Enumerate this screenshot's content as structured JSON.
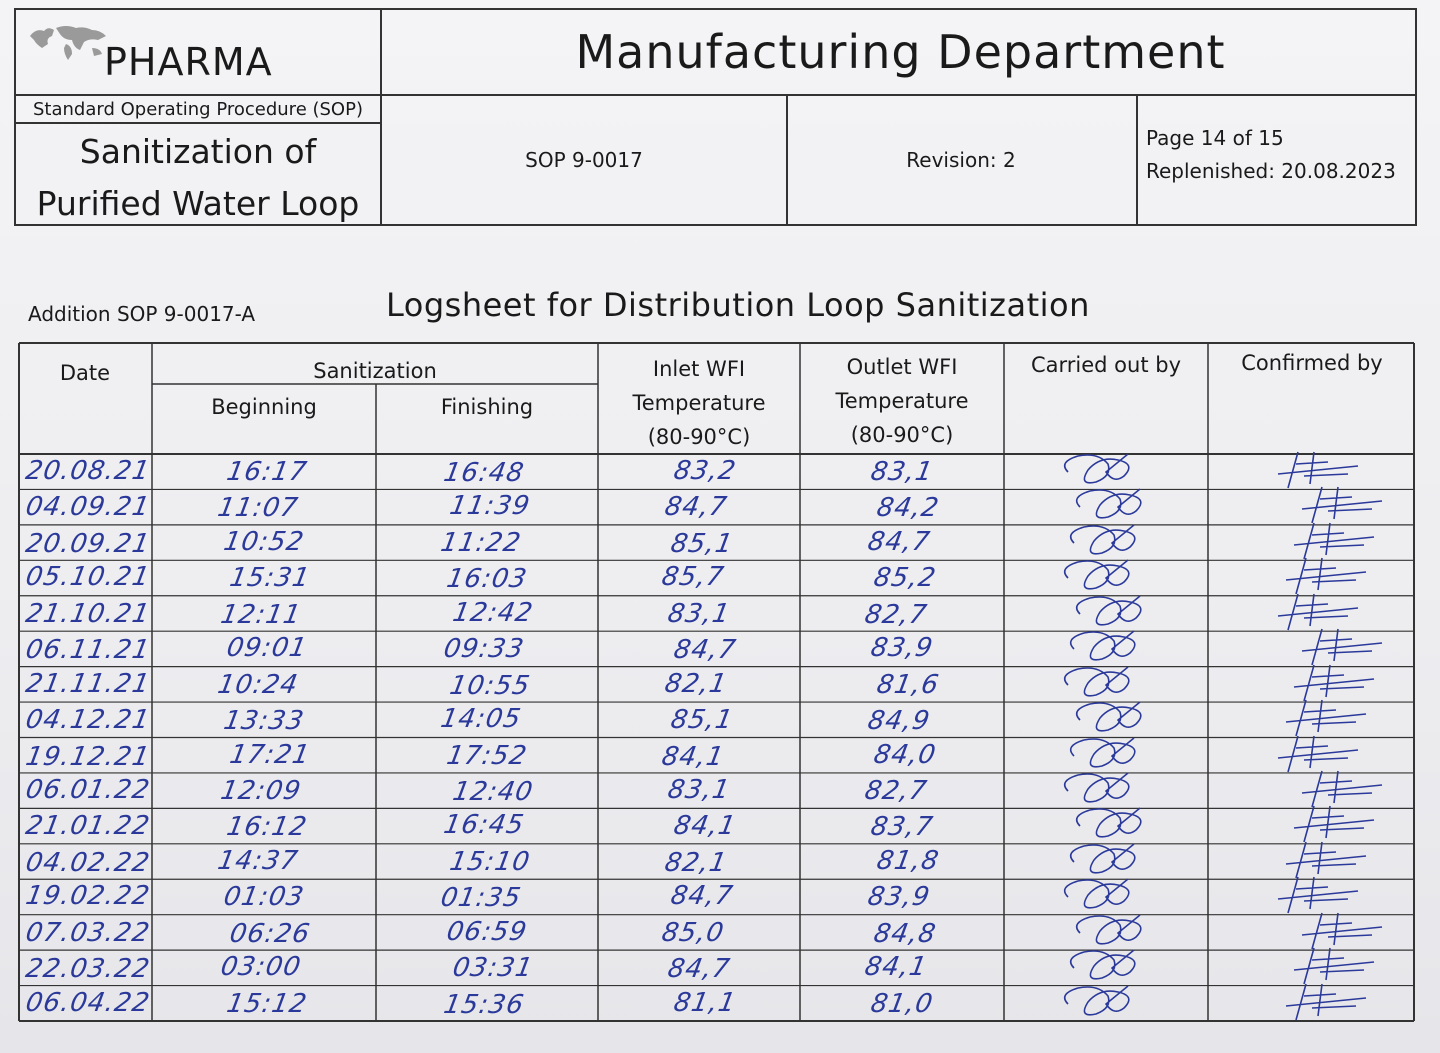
{
  "header": {
    "company": "PHARMA",
    "department": "Manufacturing Department",
    "sop_label": "Standard Operating Procedure (SOP)",
    "sop_title_line1": "Sanitization of",
    "sop_title_line2": "Purified Water Loop",
    "sop_number": "SOP 9-0017",
    "revision": "Revision: 2",
    "page": "Page 14 of 15",
    "replenished": "Replenished: 20.08.2023"
  },
  "addition": "Addition SOP 9-0017-A",
  "log_title": "Logsheet for Distribution Loop Sanitization",
  "columns": {
    "date": "Date",
    "sanitization": "Sanitization",
    "beginning": "Beginning",
    "finishing": "Finishing",
    "inlet_l1": "Inlet WFI",
    "inlet_l2": "Temperature",
    "inlet_l3": "(80-90°C)",
    "outlet_l1": "Outlet WFI",
    "outlet_l2": "Temperature",
    "outlet_l3": "(80-90°C)",
    "carried": "Carried out by",
    "confirmed": "Confirmed by"
  },
  "rows": [
    {
      "date": "20.08.21",
      "begin": "16:17",
      "finish": "16:48",
      "inlet": "83,2",
      "outlet": "83,1"
    },
    {
      "date": "04.09.21",
      "begin": "11:07",
      "finish": "11:39",
      "inlet": "84,7",
      "outlet": "84,2"
    },
    {
      "date": "20.09.21",
      "begin": "10:52",
      "finish": "11:22",
      "inlet": "85,1",
      "outlet": "84,7"
    },
    {
      "date": "05.10.21",
      "begin": "15:31",
      "finish": "16:03",
      "inlet": "85,7",
      "outlet": "85,2"
    },
    {
      "date": "21.10.21",
      "begin": "12:11",
      "finish": "12:42",
      "inlet": "83,1",
      "outlet": "82,7"
    },
    {
      "date": "06.11.21",
      "begin": "09:01",
      "finish": "09:33",
      "inlet": "84,7",
      "outlet": "83,9"
    },
    {
      "date": "21.11.21",
      "begin": "10:24",
      "finish": "10:55",
      "inlet": "82,1",
      "outlet": "81,6"
    },
    {
      "date": "04.12.21",
      "begin": "13:33",
      "finish": "14:05",
      "inlet": "85,1",
      "outlet": "84,9"
    },
    {
      "date": "19.12.21",
      "begin": "17:21",
      "finish": "17:52",
      "inlet": "84,1",
      "outlet": "84,0"
    },
    {
      "date": "06.01.22",
      "begin": "12:09",
      "finish": "12:40",
      "inlet": "83,1",
      "outlet": "82,7"
    },
    {
      "date": "21.01.22",
      "begin": "16:12",
      "finish": "16:45",
      "inlet": "84,1",
      "outlet": "83,7"
    },
    {
      "date": "04.02.22",
      "begin": "14:37",
      "finish": "15:10",
      "inlet": "82,1",
      "outlet": "81,8"
    },
    {
      "date": "19.02.22",
      "begin": "01:03",
      "finish": "01:35",
      "inlet": "84,7",
      "outlet": "83,9"
    },
    {
      "date": "07.03.22",
      "begin": "06:26",
      "finish": "06:59",
      "inlet": "85,0",
      "outlet": "84,8"
    },
    {
      "date": "22.03.22",
      "begin": "03:00",
      "finish": "03:31",
      "inlet": "84,7",
      "outlet": "84,1"
    },
    {
      "date": "06.04.22",
      "begin": "15:12",
      "finish": "15:36",
      "inlet": "81,1",
      "outlet": "81,0"
    }
  ],
  "colors": {
    "ink": "#2b3a9a",
    "line": "#333333"
  }
}
